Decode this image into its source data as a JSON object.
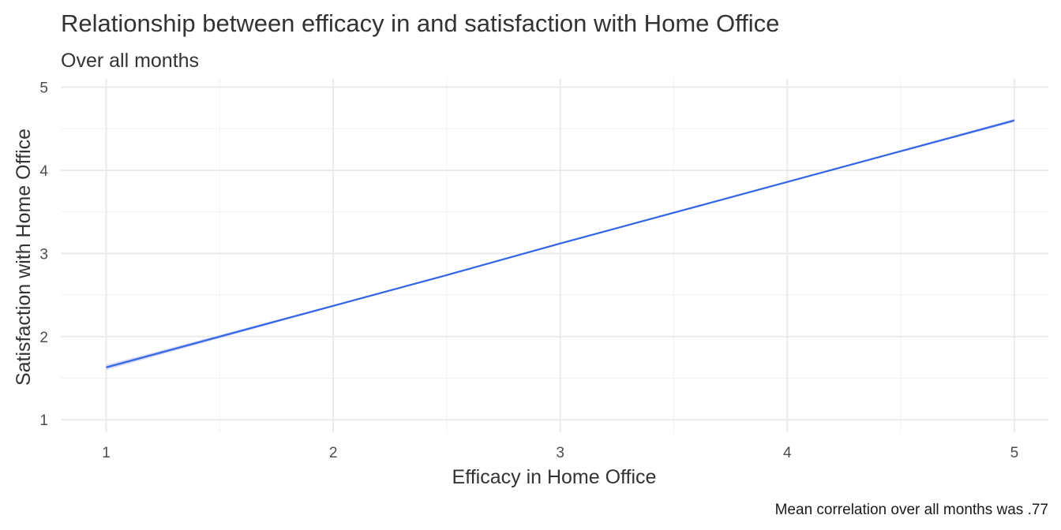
{
  "chart_data": {
    "type": "line",
    "title": "Relationship between efficacy in and satisfaction with Home Office",
    "subtitle": "Over all months",
    "xlabel": "Efficacy in Home Office",
    "ylabel": "Satisfaction with Home Office",
    "caption": "Mean correlation over all months was .77",
    "xlim": [
      0.8,
      5.15
    ],
    "ylim": [
      0.85,
      5.1
    ],
    "x_ticks": [
      1,
      2,
      3,
      4,
      5
    ],
    "y_ticks": [
      1,
      2,
      3,
      4,
      5
    ],
    "x_tick_labels": [
      "1",
      "2",
      "3",
      "4",
      "5"
    ],
    "y_tick_labels": [
      "1",
      "2",
      "3",
      "4",
      "5"
    ],
    "grid": true,
    "series": [
      {
        "type": "smooth-fit",
        "x": [
          1,
          1.5,
          2,
          2.5,
          3,
          3.5,
          4,
          4.5,
          5
        ],
        "y": [
          1.63,
          2.0,
          2.37,
          2.74,
          3.12,
          3.49,
          3.86,
          4.23,
          4.6
        ],
        "ci_lower": [
          1.6,
          1.98,
          2.36,
          2.73,
          3.11,
          3.48,
          3.85,
          4.22,
          4.58
        ],
        "ci_upper": [
          1.66,
          2.02,
          2.38,
          2.75,
          3.13,
          3.5,
          3.87,
          4.24,
          4.62
        ],
        "color": "#3366e6",
        "ribbon_color": "#c8cdf0"
      }
    ]
  }
}
